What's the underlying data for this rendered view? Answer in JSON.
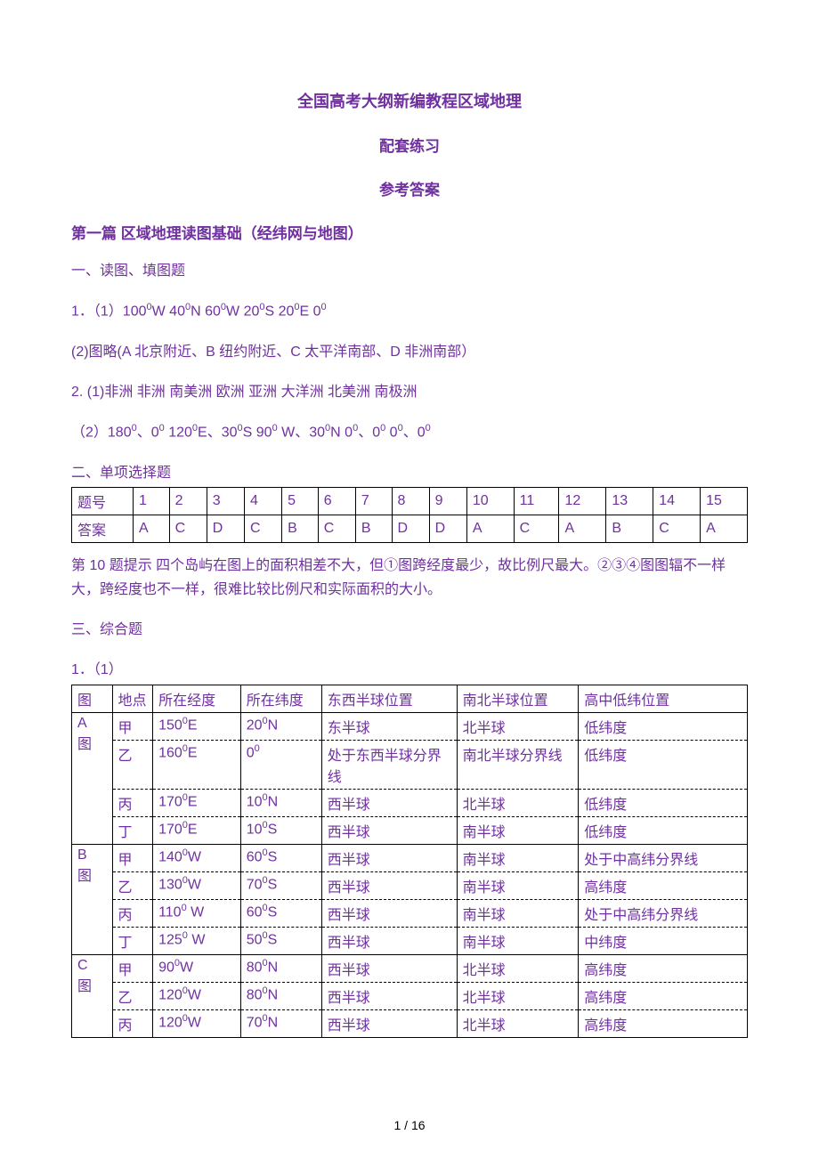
{
  "colors": {
    "purple": "#7030a0",
    "black": "#000000",
    "background": "#ffffff"
  },
  "fonts": {
    "chinese": "SimSun",
    "latin": "Arial",
    "title_size": 18,
    "body_size": 16
  },
  "title": "全国高考大纲新编教程区域地理",
  "subtitle1": "配套练习",
  "subtitle2": "参考答案",
  "section1_heading": "第一篇 区域地理读图基础（经纬网与地图）",
  "part1_heading": "一、读图、填图题",
  "q1_line1_prefix": "1．（1）100",
  "q1_line1_seg1": "W   40",
  "q1_line1_seg2": "N   60",
  "q1_line1_seg3": "W   20",
  "q1_line1_seg4": "S    20",
  "q1_line1_seg5": "E  0",
  "sup0": "0",
  "q1_line2": "(2)图略(A 北京附近、B 纽约附近、C 太平洋南部、D 非洲南部）",
  "q2_line1": "2. (1)非洲  非洲 南美洲  欧洲  亚洲 大洋洲  北美洲  南极洲",
  "q2_line2_prefix": "（2）180",
  "q2_line2_a": "、0",
  "q2_line2_b": "    120",
  "q2_line2_c": "E、30",
  "q2_line2_d": "S    90",
  "q2_line2_e": " W、30",
  "q2_line2_f": "N   0",
  "q2_line2_g": "、0",
  "q2_line2_h": "    0",
  "q2_line2_i": "、0",
  "part2_heading": "二、单项选择题",
  "mcq": {
    "row_label1": "题号",
    "row_label2": "答案",
    "nums": [
      "1",
      "2",
      "3",
      "4",
      "5",
      "6",
      "7",
      "8",
      "9",
      "10",
      "11",
      "12",
      "13",
      "14",
      "15"
    ],
    "ans": [
      "A",
      "C",
      "D",
      "C",
      "B",
      "C",
      "B",
      "D",
      "D",
      "A",
      "C",
      "A",
      "B",
      "C",
      "A"
    ]
  },
  "hint10": "第 10 题提示  四个岛屿在图上的面积相差不大，但①图跨经度最少，故比例尺最大。②③④图图辐不一样大，跨经度也不一样，很难比较比例尺和实际面积的大小。",
  "part3_heading": "三、综合题",
  "q3_prefix": "1．（1）",
  "geo_table": {
    "headers": [
      "图",
      "地点",
      "所在经度",
      "所在纬度",
      "东西半球位置",
      "南北半球位置",
      "高中低纬位置"
    ],
    "colwidths_pct": [
      6,
      6,
      13,
      12,
      20,
      18,
      25
    ],
    "rows": [
      {
        "group": "A图",
        "point": "甲",
        "lon": "150⁰E",
        "lat": "20⁰N",
        "ew": "东半球",
        "ns": "北半球",
        "hl": "低纬度",
        "solid": true,
        "rowspan": 4
      },
      {
        "point": "乙",
        "lon": "160⁰E",
        "lat": "0⁰",
        "ew": "处于东西半球分界线",
        "ns": "南北半球分界线",
        "hl": "低纬度"
      },
      {
        "point": "丙",
        "lon": "170⁰E",
        "lat": "10⁰N",
        "ew": "西半球",
        "ns": "北半球",
        "hl": "低纬度"
      },
      {
        "point": "丁",
        "lon": "170⁰E",
        "lat": "10⁰S",
        "ew": "西半球",
        "ns": "南半球",
        "hl": "低纬度"
      },
      {
        "group": "B图",
        "point": "甲",
        "lon": "140⁰W",
        "lat": "60⁰S",
        "ew": "西半球",
        "ns": "南半球",
        "hl": "处于中高纬分界线",
        "solid": true,
        "rowspan": 4
      },
      {
        "point": "乙",
        "lon": "130⁰W",
        "lat": "70⁰S",
        "ew": "西半球",
        "ns": "南半球",
        "hl": "高纬度"
      },
      {
        "point": "丙",
        "lon": "110⁰ W",
        "lat": "60⁰S",
        "ew": "西半球",
        "ns": "南半球",
        "hl": "处于中高纬分界线"
      },
      {
        "point": "丁",
        "lon": "125⁰ W",
        "lat": "50⁰S",
        "ew": "西半球",
        "ns": "南半球",
        "hl": "中纬度"
      },
      {
        "group": "C图",
        "point": "甲",
        "lon": "90⁰W",
        "lat": "80⁰N",
        "ew": "西半球",
        "ns": "北半球",
        "hl": "高纬度",
        "solid": true,
        "rowspan": 3
      },
      {
        "point": "乙",
        "lon": "120⁰W",
        "lat": "80⁰N",
        "ew": "西半球",
        "ns": "北半球",
        "hl": "高纬度"
      },
      {
        "point": "丙",
        "lon": "120⁰W",
        "lat": "70⁰N",
        "ew": "西半球",
        "ns": "北半球",
        "hl": "高纬度"
      }
    ]
  },
  "footer": "1 / 16"
}
